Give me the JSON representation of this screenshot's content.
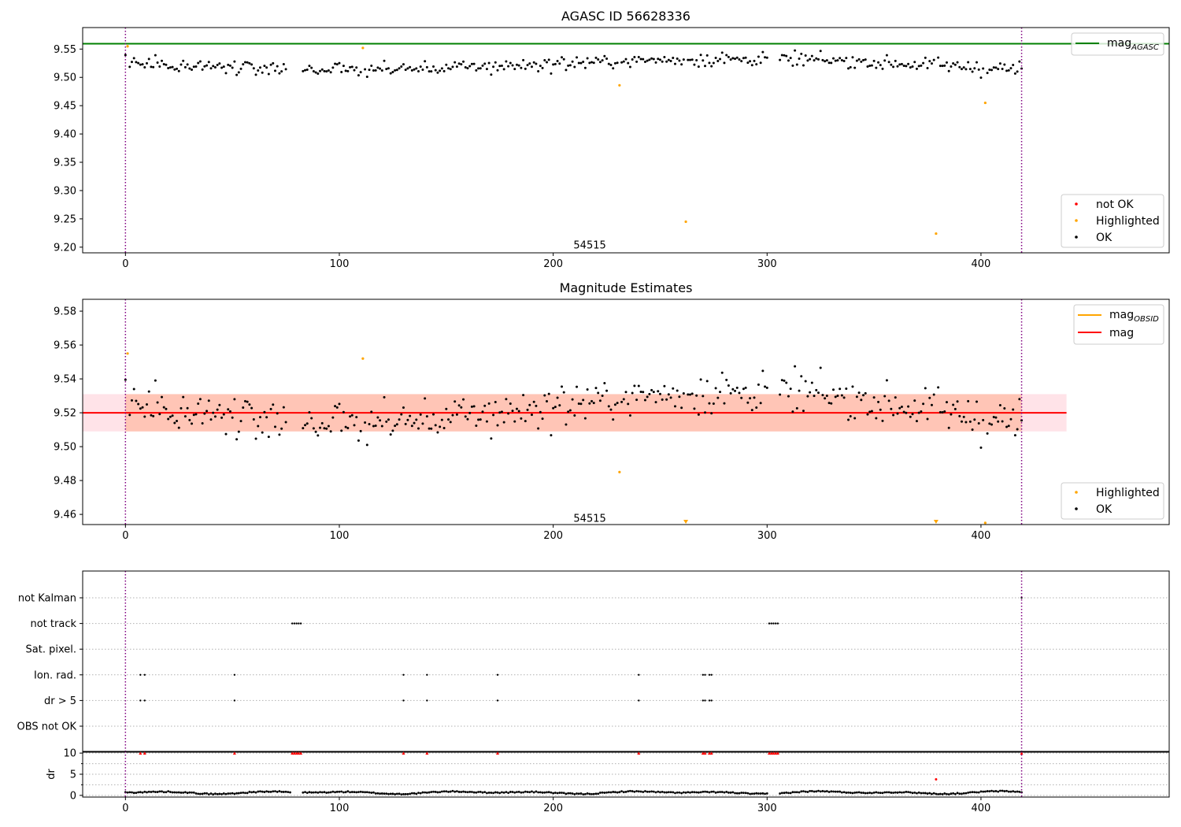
{
  "colors": {
    "ok": "#000000",
    "highlighted": "#ffa500",
    "not_ok": "#ff0000",
    "mag_agasc": "#008000",
    "mag_obsid": "#ffa500",
    "mag": "#ff0000",
    "band_pink": "#ffc0cb",
    "band_salmon": "#ffa07a",
    "vline": "#800080"
  },
  "chart_data": [
    {
      "type": "scatter",
      "title": "AGASC ID 56628336",
      "xlim": [
        -20,
        488
      ],
      "ylim": [
        9.19,
        9.588
      ],
      "x_ticks": [
        0,
        100,
        200,
        300,
        400
      ],
      "y_ticks": [
        9.2,
        9.25,
        9.3,
        9.35,
        9.4,
        9.45,
        9.5,
        9.55
      ],
      "y_tick_decimals": 2,
      "hline": {
        "value": 9.5595,
        "label": "mag_{AGASC}"
      },
      "vlines": [
        0,
        419
      ],
      "annotation": {
        "text": "54515",
        "x": 209,
        "y": 9.203
      },
      "highlighted_points": [
        [
          1,
          9.555
        ],
        [
          111,
          9.552
        ],
        [
          231,
          9.486
        ],
        [
          262,
          9.245
        ],
        [
          379,
          9.224
        ],
        [
          402,
          9.455
        ]
      ],
      "legend": {
        "lines": [
          "mag_{AGASC}"
        ],
        "markers": [
          "not OK",
          "Highlighted",
          "OK"
        ]
      }
    },
    {
      "type": "scatter",
      "title": "Magnitude Estimates",
      "xlim": [
        -20,
        488
      ],
      "ylim": [
        9.454,
        9.587
      ],
      "x_ticks": [
        0,
        100,
        200,
        300,
        400
      ],
      "y_ticks": [
        9.46,
        9.48,
        9.5,
        9.52,
        9.54,
        9.56,
        9.58
      ],
      "y_tick_decimals": 2,
      "mag": 9.52,
      "band_pink": [
        9.509,
        9.531,
        -20,
        440
      ],
      "band_salmon": [
        9.509,
        9.531,
        0,
        419
      ],
      "vlines": [
        0,
        419
      ],
      "annotation": {
        "text": "54515",
        "x": 209,
        "y": 9.4575
      },
      "highlighted_points": [
        [
          1,
          9.555
        ],
        [
          111,
          9.552
        ],
        [
          231,
          9.485
        ],
        [
          402,
          9.455
        ]
      ],
      "highlighted_triangles": [
        262,
        379
      ],
      "legend": {
        "lines": [
          "mag_{OBSID}",
          "mag"
        ],
        "markers": [
          "Highlighted",
          "OK"
        ]
      }
    },
    {
      "type": "scatter",
      "title": "",
      "xlim": [
        -20,
        488
      ],
      "x_ticks": [
        0,
        100,
        200,
        300,
        400
      ],
      "categories": [
        "not Kalman",
        "not track",
        "Sat. pixel.",
        "Ion. rad.",
        "dr > 5",
        "OBS not OK"
      ],
      "flags": {
        "not track": [
          78,
          79,
          80,
          81,
          82,
          301,
          302,
          303,
          304,
          305
        ],
        "Ion. rad.": [
          7,
          9,
          51,
          130,
          141,
          174,
          240,
          270,
          271,
          273,
          274
        ],
        "dr > 5": [
          7,
          9,
          51,
          130,
          141,
          174,
          240,
          270,
          271,
          273,
          274
        ],
        "not Kalman": [
          419
        ]
      },
      "vlines": [
        0,
        419
      ]
    },
    {
      "type": "scatter",
      "title": "",
      "ylabel": "dr",
      "xlim": [
        -20,
        488
      ],
      "ylim": [
        -0.4,
        10.4
      ],
      "x_ticks": [
        0,
        100,
        200,
        300,
        400
      ],
      "y_ticks": [
        0,
        5,
        10
      ],
      "minor_y": [
        2.5,
        7.5
      ],
      "clipped_at": 10,
      "clipped_x": [
        7,
        9,
        51,
        78,
        79,
        80,
        81,
        82,
        130,
        141,
        174,
        240,
        270,
        271,
        273,
        274,
        301,
        302,
        303,
        304,
        305,
        419
      ],
      "red_points": [
        [
          379,
          3.8
        ]
      ],
      "vlines": [
        0,
        419
      ]
    }
  ]
}
